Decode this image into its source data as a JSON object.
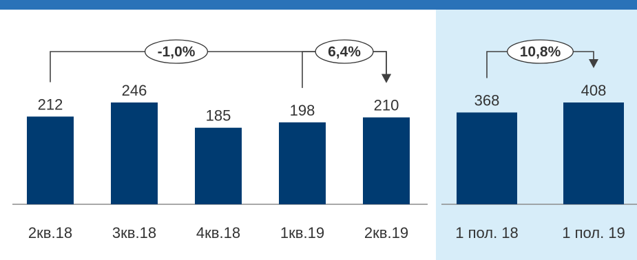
{
  "colors": {
    "top_band": "#2a72b8",
    "bar": "#003b71",
    "highlight_panel": "#d7edf9",
    "text": "#333333",
    "connector": "#404040",
    "baseline": "#8c8c8c",
    "badge_fill": "#ffffff"
  },
  "chart_data": [
    {
      "type": "bar",
      "categories": [
        "2кв.18",
        "3кв.18",
        "4кв.18",
        "1кв.19",
        "2кв.19"
      ],
      "values": [
        212,
        246,
        185,
        198,
        210
      ],
      "grid": false,
      "annotations": [
        {
          "label": "-1,0%",
          "from": 0,
          "to": 4
        },
        {
          "label": "6,4%",
          "from": 3,
          "to": 4
        }
      ]
    },
    {
      "type": "bar",
      "categories": [
        "1 пол. 18",
        "1 пол. 19"
      ],
      "values": [
        368,
        408
      ],
      "grid": false,
      "annotations": [
        {
          "label": "10,8%",
          "from": 0,
          "to": 1
        }
      ]
    }
  ]
}
